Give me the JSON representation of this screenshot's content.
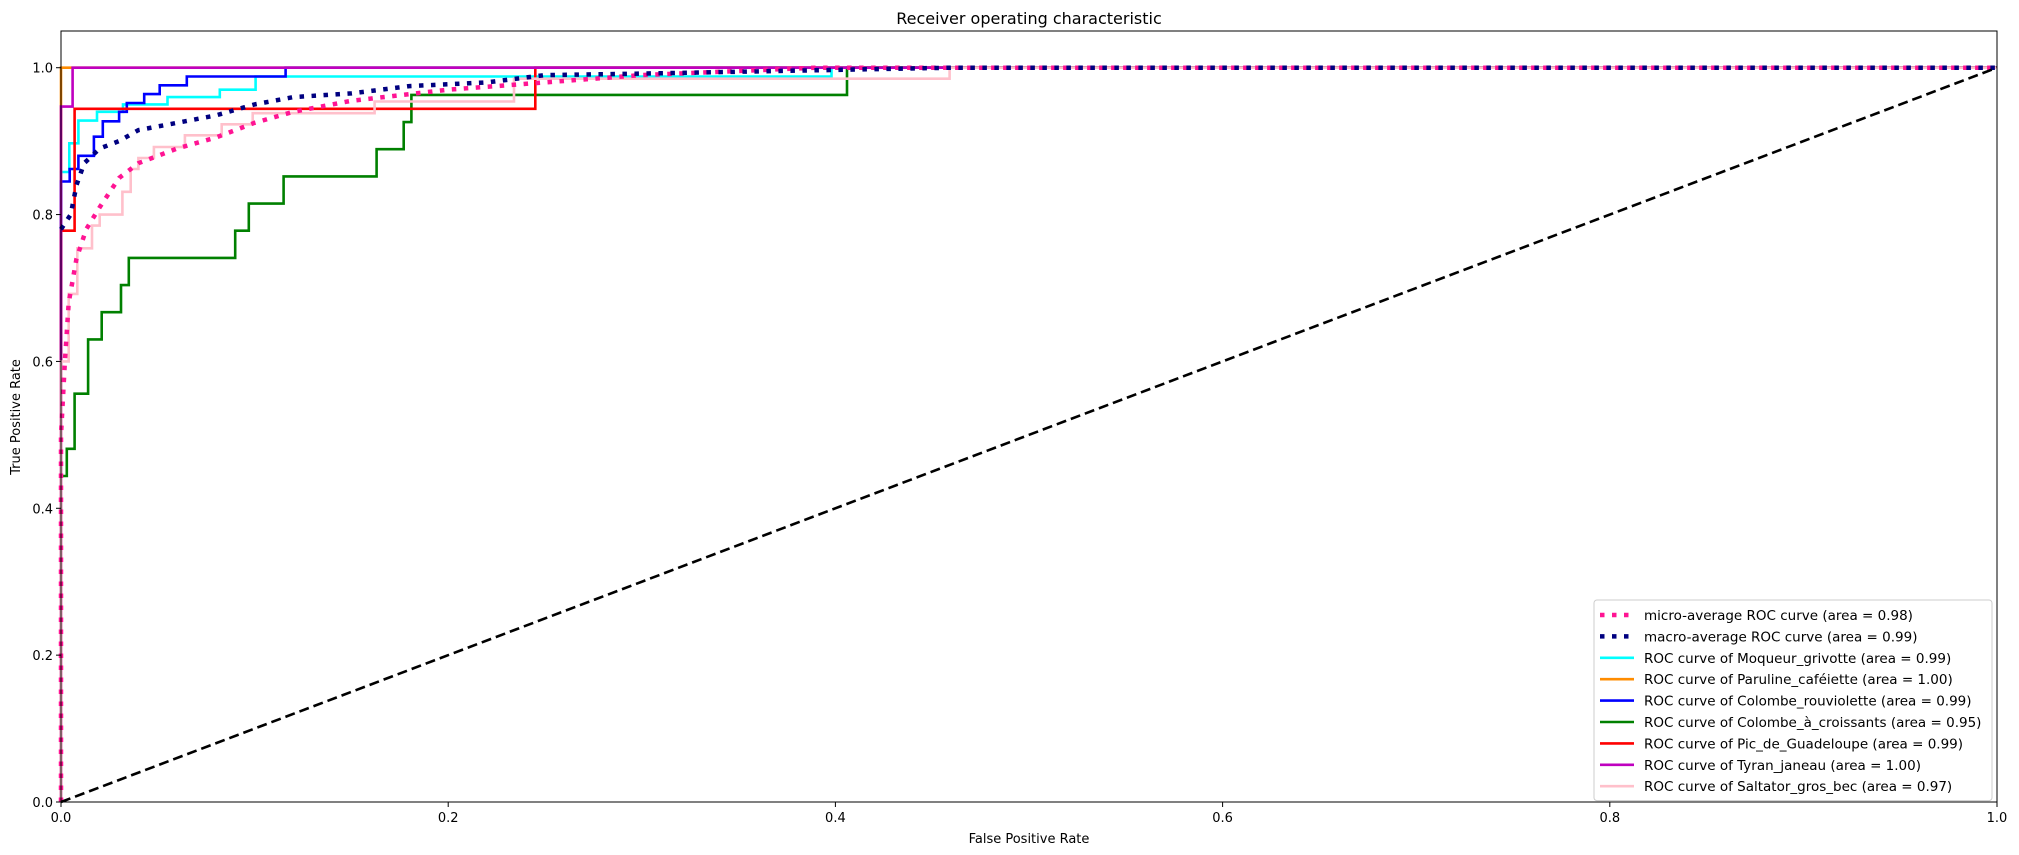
{
  "chart_data": {
    "type": "line",
    "title": "Receiver operating characteristic",
    "xlabel": "False Positive Rate",
    "ylabel": "True Positive Rate",
    "xlim": [
      0,
      1.0
    ],
    "ylim": [
      0,
      1.05
    ],
    "xticks": [
      "0.0",
      "0.2",
      "0.4",
      "0.6",
      "0.8",
      "1.0"
    ],
    "yticks": [
      "0.0",
      "0.2",
      "0.4",
      "0.6",
      "0.8",
      "1.0"
    ],
    "grid": false,
    "legend_position": "lower-right",
    "series": [
      {
        "name": "micro-average ROC curve (area = 0.98)",
        "color": "#ff1493",
        "style": "dotted",
        "x": [
          0,
          0,
          0.002,
          0.004,
          0.008,
          0.013,
          0.02,
          0.03,
          0.04,
          0.06,
          0.08,
          0.1,
          0.12,
          0.15,
          0.2,
          0.25,
          0.3,
          0.39,
          1.0
        ],
        "y": [
          0,
          0.5,
          0.6,
          0.68,
          0.74,
          0.78,
          0.81,
          0.85,
          0.87,
          0.89,
          0.905,
          0.925,
          0.94,
          0.955,
          0.97,
          0.98,
          0.99,
          1.0,
          1.0
        ]
      },
      {
        "name": "macro-average ROC curve (area = 0.99)",
        "color": "#000080",
        "style": "dotted",
        "x": [
          0,
          0.005,
          0.008,
          0.012,
          0.02,
          0.03,
          0.04,
          0.06,
          0.08,
          0.1,
          0.12,
          0.15,
          0.18,
          0.22,
          0.25,
          0.3,
          0.4,
          0.46,
          1.0
        ],
        "y": [
          0.78,
          0.8,
          0.84,
          0.87,
          0.89,
          0.9,
          0.915,
          0.925,
          0.935,
          0.95,
          0.96,
          0.965,
          0.975,
          0.98,
          0.99,
          0.992,
          0.997,
          1.0,
          1.0
        ]
      },
      {
        "name": "ROC curve of Moqueur_grivotte (area = 0.99)",
        "color": "#00ffff",
        "style": "step",
        "x": [
          0,
          0,
          0.0043,
          0.0043,
          0.009,
          0.009,
          0.0186,
          0.0186,
          0.032,
          0.032,
          0.055,
          0.055,
          0.082,
          0.082,
          0.1005,
          0.1005,
          0.398,
          0.398,
          1.0
        ],
        "y": [
          0,
          0.858,
          0.858,
          0.897,
          0.897,
          0.928,
          0.928,
          0.94,
          0.94,
          0.95,
          0.95,
          0.96,
          0.96,
          0.97,
          0.97,
          0.988,
          0.988,
          1.0,
          1.0
        ]
      },
      {
        "name": "ROC curve of Paruline_caféiette (area = 1.00)",
        "color": "#ff8c00",
        "style": "step",
        "x": [
          0,
          0,
          1.0
        ],
        "y": [
          0,
          1.0,
          1.0
        ]
      },
      {
        "name": "ROC curve of Colombe_rouviolette (area = 0.99)",
        "color": "#0000ff",
        "style": "step",
        "x": [
          0,
          0,
          0.0045,
          0.0045,
          0.009,
          0.009,
          0.017,
          0.017,
          0.0216,
          0.0216,
          0.03,
          0.03,
          0.034,
          0.034,
          0.043,
          0.043,
          0.051,
          0.051,
          0.065,
          0.065,
          0.116,
          0.116,
          1.0
        ],
        "y": [
          0,
          0.845,
          0.845,
          0.862,
          0.862,
          0.88,
          0.88,
          0.906,
          0.906,
          0.927,
          0.927,
          0.94,
          0.94,
          0.952,
          0.952,
          0.964,
          0.964,
          0.976,
          0.976,
          0.988,
          0.988,
          1.0,
          1.0
        ]
      },
      {
        "name": "ROC curve of Colombe_à_croissants (area = 0.95)",
        "color": "#008000",
        "style": "step",
        "x": [
          0,
          0,
          0.003,
          0.003,
          0.007,
          0.007,
          0.014,
          0.014,
          0.021,
          0.021,
          0.031,
          0.031,
          0.035,
          0.035,
          0.09,
          0.09,
          0.097,
          0.097,
          0.115,
          0.115,
          0.163,
          0.163,
          0.177,
          0.177,
          0.181,
          0.181,
          0.406,
          0.406,
          1.0
        ],
        "y": [
          0,
          0.444,
          0.444,
          0.481,
          0.481,
          0.556,
          0.556,
          0.63,
          0.63,
          0.667,
          0.667,
          0.704,
          0.704,
          0.741,
          0.741,
          0.778,
          0.778,
          0.815,
          0.815,
          0.852,
          0.852,
          0.889,
          0.889,
          0.926,
          0.926,
          0.963,
          0.963,
          1.0,
          1.0
        ]
      },
      {
        "name": "ROC curve of Pic_de_Guadeloupe (area = 0.99)",
        "color": "#ff0000",
        "style": "step",
        "x": [
          0,
          0,
          0.007,
          0.007,
          0.245,
          0.245,
          1.0
        ],
        "y": [
          0,
          0.778,
          0.778,
          0.944,
          0.944,
          1.0,
          1.0
        ]
      },
      {
        "name": "ROC curve of Tyran_janeau (area = 1.00)",
        "color": "#bf00bf",
        "style": "step",
        "x": [
          0,
          0,
          0.006,
          0.006,
          1.0
        ],
        "y": [
          0,
          0.947,
          0.947,
          1.0,
          1.0
        ]
      },
      {
        "name": "ROC curve of Saltator_gros_bec (area = 0.97)",
        "color": "#ffc0cb",
        "style": "step",
        "x": [
          0,
          0,
          0.004,
          0.004,
          0.0084,
          0.0084,
          0.016,
          0.016,
          0.02,
          0.02,
          0.0317,
          0.0317,
          0.036,
          0.036,
          0.04,
          0.04,
          0.048,
          0.048,
          0.064,
          0.064,
          0.083,
          0.083,
          0.099,
          0.099,
          0.162,
          0.162,
          0.234,
          0.234,
          0.459,
          0.459,
          1.0
        ],
        "y": [
          0,
          0.6,
          0.6,
          0.692,
          0.692,
          0.754,
          0.754,
          0.785,
          0.785,
          0.8,
          0.8,
          0.831,
          0.831,
          0.862,
          0.862,
          0.877,
          0.877,
          0.892,
          0.892,
          0.908,
          0.908,
          0.923,
          0.923,
          0.938,
          0.938,
          0.954,
          0.954,
          0.985,
          0.985,
          1.0,
          1.0
        ]
      }
    ],
    "reference_line": {
      "x": [
        0,
        1
      ],
      "y": [
        0,
        1
      ],
      "color": "#000000",
      "style": "dashed"
    }
  }
}
